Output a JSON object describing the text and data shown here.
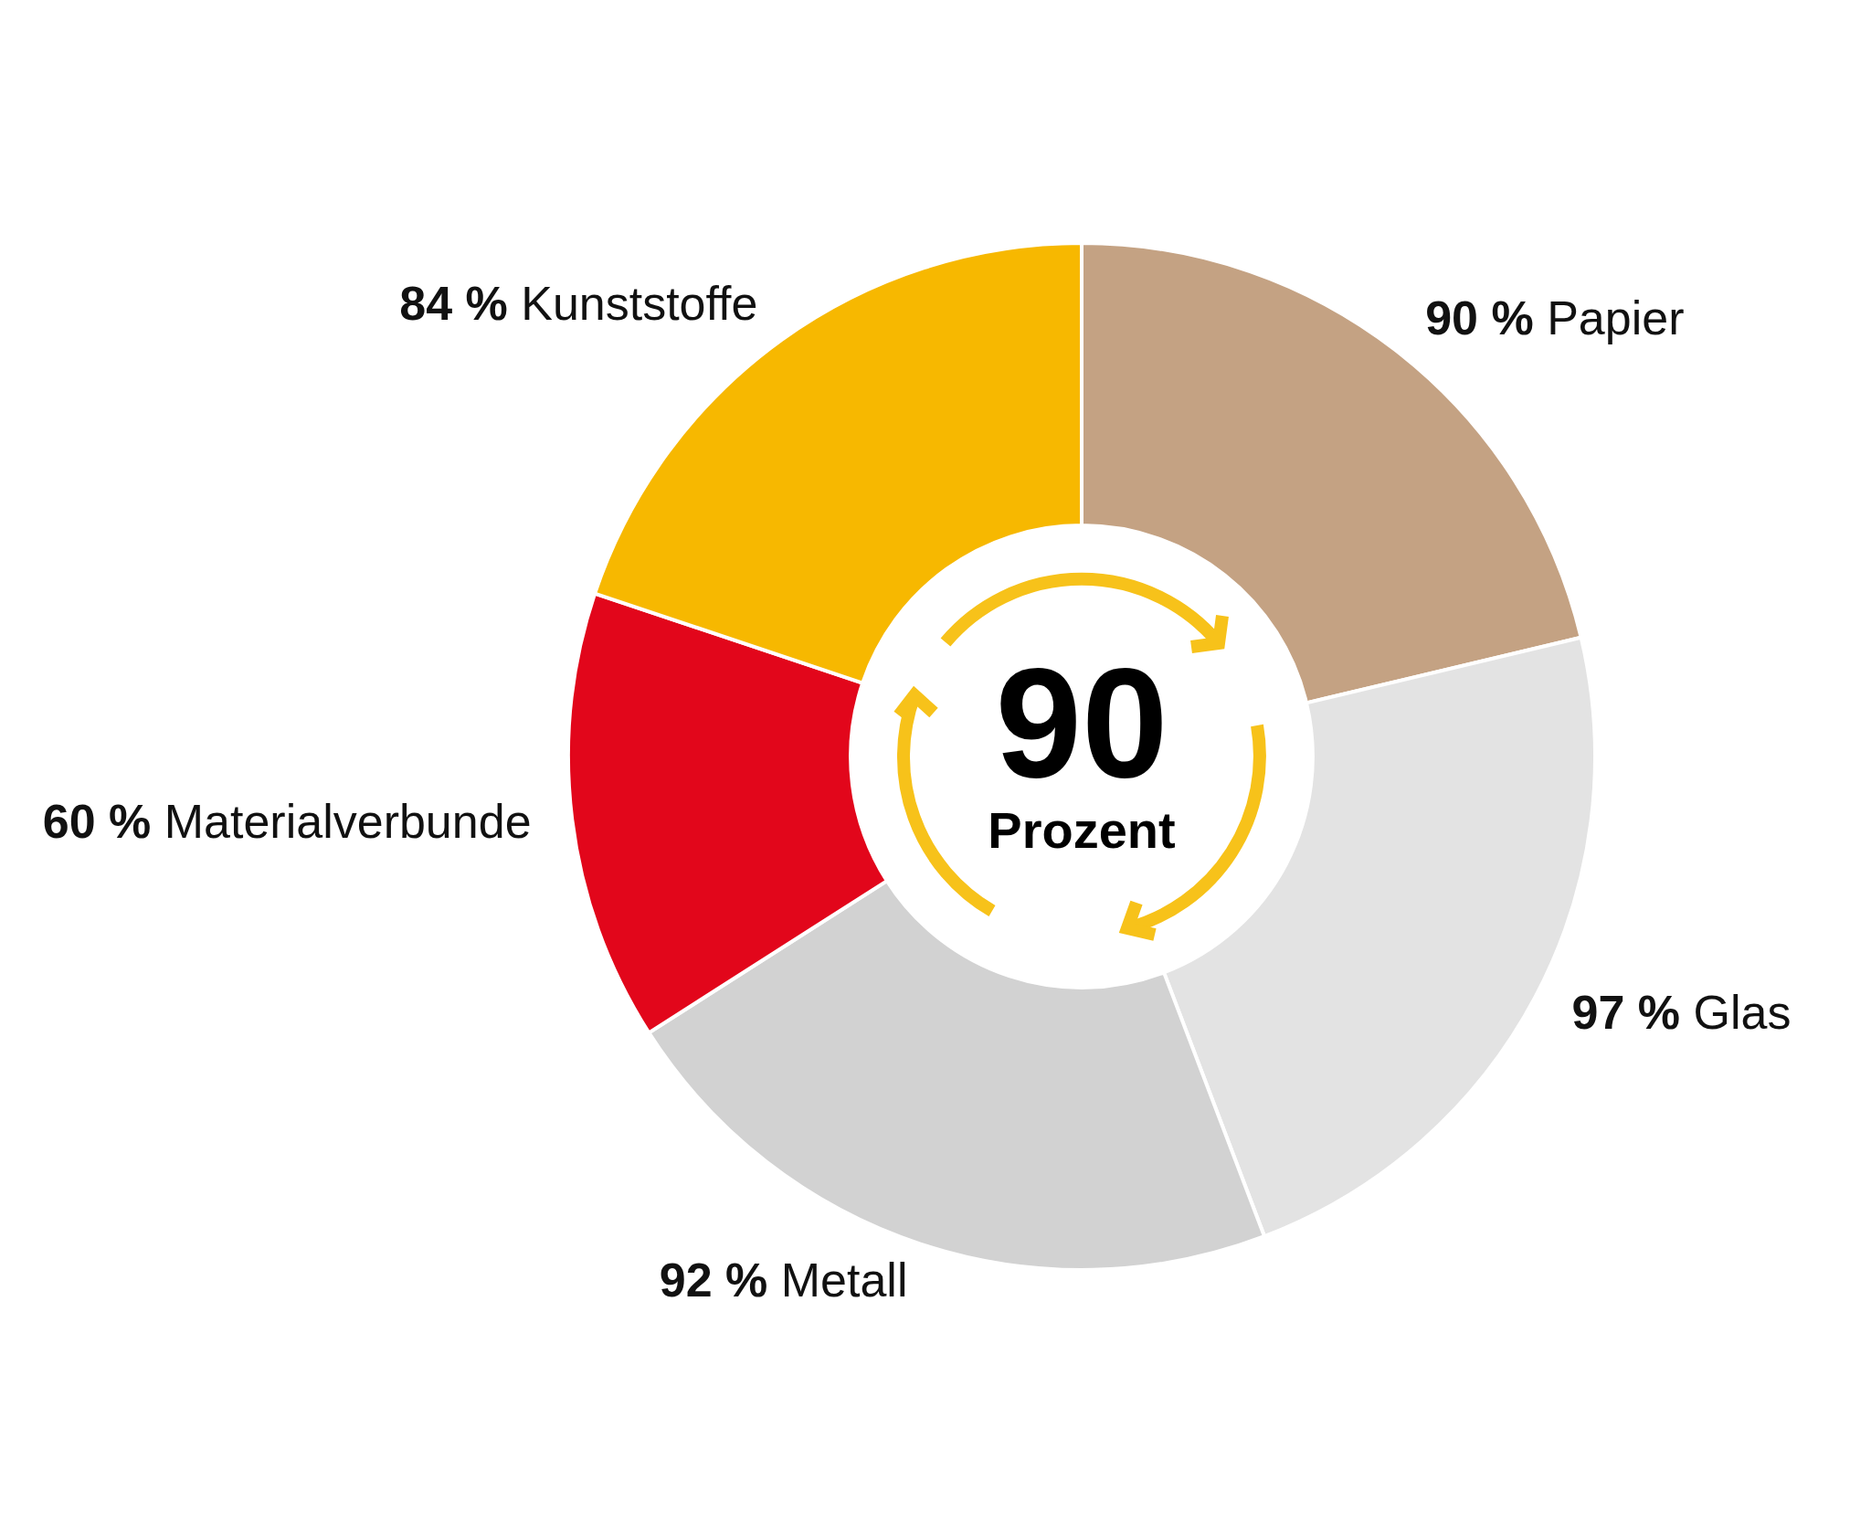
{
  "chart_data": {
    "type": "donut",
    "categories": [
      "Papier",
      "Glas",
      "Metall",
      "Materialverbunde",
      "Kunststoffe"
    ],
    "values": [
      90,
      97,
      92,
      60,
      84
    ],
    "value_labels": [
      "90 %",
      "97 %",
      "92 %",
      "60 %",
      "84 %"
    ],
    "colors": [
      "#c4a283",
      "#e3e3e3",
      "#d2d2d2",
      "#e2061b",
      "#f7b800"
    ],
    "annotations": [
      "90",
      "Prozent"
    ],
    "legend": false
  }
}
